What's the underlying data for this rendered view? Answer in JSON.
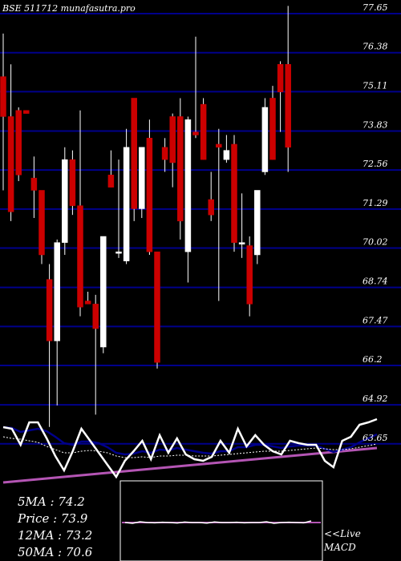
{
  "chart_data": {
    "type": "candlestick",
    "title": "BSE 511712 munafasutra.pro",
    "y_ticks": [
      77.65,
      76.38,
      75.11,
      73.83,
      72.56,
      71.29,
      70.02,
      68.74,
      67.47,
      66.2,
      64.92,
      63.65
    ],
    "y_tick_labels": [
      "77.65",
      "76.38",
      "75.11",
      "73.83",
      "72.56",
      "71.29",
      "70.02",
      "68.74",
      "67.47",
      "66.2",
      "64.92",
      "63.65"
    ],
    "ylim": [
      63.3,
      77.9
    ],
    "grid": true,
    "candles": [
      {
        "o": 75.6,
        "h": 77.0,
        "l": 71.9,
        "c": 74.3
      },
      {
        "o": 74.3,
        "h": 76.0,
        "l": 70.9,
        "c": 71.2
      },
      {
        "o": 74.5,
        "h": 74.6,
        "l": 72.2,
        "c": 72.4
      },
      {
        "o": 74.5,
        "h": 74.5,
        "l": 74.4,
        "c": 74.4
      },
      {
        "o": 72.3,
        "h": 73.0,
        "l": 71.0,
        "c": 71.9
      },
      {
        "o": 71.9,
        "h": 71.9,
        "l": 69.5,
        "c": 69.8
      },
      {
        "o": 69.0,
        "h": 69.5,
        "l": 64.2,
        "c": 67.0
      },
      {
        "o": 67.0,
        "h": 70.3,
        "l": 64.9,
        "c": 70.2
      },
      {
        "o": 70.2,
        "h": 73.3,
        "l": 69.8,
        "c": 72.9
      },
      {
        "o": 72.9,
        "h": 73.2,
        "l": 71.1,
        "c": 71.4
      },
      {
        "o": 71.4,
        "h": 74.5,
        "l": 67.8,
        "c": 68.1
      },
      {
        "o": 68.3,
        "h": 68.6,
        "l": 68.2,
        "c": 68.2
      },
      {
        "o": 68.2,
        "h": 68.5,
        "l": 64.6,
        "c": 67.4
      },
      {
        "o": 66.8,
        "h": 70.3,
        "l": 66.6,
        "c": 70.4
      },
      {
        "o": 72.4,
        "h": 73.2,
        "l": 72.0,
        "c": 72.0
      },
      {
        "o": 69.9,
        "h": 72.9,
        "l": 69.7,
        "c": 69.9
      },
      {
        "o": 69.6,
        "h": 73.9,
        "l": 69.5,
        "c": 73.3
      },
      {
        "o": 74.9,
        "h": 74.9,
        "l": 70.9,
        "c": 71.3
      },
      {
        "o": 71.3,
        "h": 73.3,
        "l": 71.0,
        "c": 73.3
      },
      {
        "o": 73.6,
        "h": 74.2,
        "l": 69.8,
        "c": 69.9
      },
      {
        "o": 69.9,
        "h": 69.9,
        "l": 66.1,
        "c": 66.3
      },
      {
        "o": 73.3,
        "h": 73.6,
        "l": 72.5,
        "c": 72.9
      },
      {
        "o": 74.3,
        "h": 74.4,
        "l": 72.0,
        "c": 72.8
      },
      {
        "o": 74.3,
        "h": 74.9,
        "l": 70.3,
        "c": 70.9
      },
      {
        "o": 69.9,
        "h": 74.3,
        "l": 68.9,
        "c": 74.2
      },
      {
        "o": 73.8,
        "h": 76.9,
        "l": 73.6,
        "c": 73.7
      },
      {
        "o": 74.7,
        "h": 74.9,
        "l": 72.9,
        "c": 72.9
      },
      {
        "o": 71.6,
        "h": 72.5,
        "l": 70.9,
        "c": 71.1
      },
      {
        "o": 73.4,
        "h": 73.9,
        "l": 68.3,
        "c": 73.3
      },
      {
        "o": 72.9,
        "h": 73.7,
        "l": 72.8,
        "c": 73.2
      },
      {
        "o": 73.4,
        "h": 73.7,
        "l": 69.9,
        "c": 70.2
      },
      {
        "o": 70.2,
        "h": 71.8,
        "l": 69.7,
        "c": 70.2
      },
      {
        "o": 70.1,
        "h": 70.4,
        "l": 67.8,
        "c": 68.2
      },
      {
        "o": 69.8,
        "h": 71.8,
        "l": 69.5,
        "c": 71.9
      },
      {
        "o": 72.5,
        "h": 74.9,
        "l": 72.4,
        "c": 74.6
      },
      {
        "o": 74.9,
        "h": 75.3,
        "l": 72.9,
        "c": 72.9
      },
      {
        "o": 76.0,
        "h": 76.1,
        "l": 73.8,
        "c": 75.1
      },
      {
        "o": 76.0,
        "h": 77.9,
        "l": 72.5,
        "c": 73.3
      }
    ],
    "bull_color": "#ffffff",
    "bear_color": "#cc0000",
    "grid_color": "#00008b",
    "macd_panel": {
      "macd_line": [
        0.72,
        0.7,
        0.5,
        0.78,
        0.78,
        0.58,
        0.36,
        0.18,
        0.42,
        0.7,
        0.55,
        0.4,
        0.25,
        0.1,
        0.3,
        0.42,
        0.55,
        0.32,
        0.62,
        0.4,
        0.58,
        0.38,
        0.32,
        0.3,
        0.35,
        0.55,
        0.4,
        0.7,
        0.48,
        0.62,
        0.5,
        0.42,
        0.38,
        0.55,
        0.52,
        0.5,
        0.5,
        0.3,
        0.22,
        0.55,
        0.6,
        0.75,
        0.78,
        0.82
      ],
      "signal_line": [
        0.72,
        0.71,
        0.66,
        0.68,
        0.7,
        0.67,
        0.6,
        0.52,
        0.5,
        0.54,
        0.54,
        0.52,
        0.47,
        0.4,
        0.38,
        0.39,
        0.42,
        0.4,
        0.44,
        0.43,
        0.46,
        0.44,
        0.42,
        0.4,
        0.39,
        0.42,
        0.42,
        0.47,
        0.47,
        0.5,
        0.5,
        0.48,
        0.46,
        0.48,
        0.49,
        0.49,
        0.49,
        0.45,
        0.41,
        0.44,
        0.47,
        0.53,
        0.58,
        0.63
      ],
      "trend_line": [
        0.6,
        0.58,
        0.57,
        0.55,
        0.53,
        0.48,
        0.44,
        0.4,
        0.4,
        0.42,
        0.43,
        0.42,
        0.4,
        0.36,
        0.34,
        0.34,
        0.35,
        0.34,
        0.36,
        0.36,
        0.37,
        0.37,
        0.36,
        0.36,
        0.36,
        0.37,
        0.38,
        0.39,
        0.4,
        0.41,
        0.42,
        0.42,
        0.42,
        0.43,
        0.44,
        0.45,
        0.46,
        0.45,
        0.44,
        0.44,
        0.45,
        0.47,
        0.49,
        0.51
      ],
      "ema_line": [
        0.03,
        0.04,
        0.05,
        0.06,
        0.07,
        0.08,
        0.09,
        0.1,
        0.11,
        0.12,
        0.13,
        0.14,
        0.15,
        0.16,
        0.17,
        0.18,
        0.19,
        0.2,
        0.21,
        0.22,
        0.23,
        0.24,
        0.25,
        0.26,
        0.27,
        0.28,
        0.29,
        0.3,
        0.31,
        0.32,
        0.33,
        0.34,
        0.35,
        0.36,
        0.37,
        0.38,
        0.39,
        0.4,
        0.41,
        0.42,
        0.43,
        0.44,
        0.45,
        0.46
      ],
      "macd_color": "#ffffff",
      "signal_color": "#00008b",
      "ema_color": "#b455b4",
      "inset_histogram": [
        0.5,
        0.45,
        0.55,
        0.5,
        0.48,
        0.52,
        0.5,
        0.47,
        0.53,
        0.5,
        0.5,
        0.46,
        0.54,
        0.5,
        0.5,
        0.52,
        0.48,
        0.5,
        0.5,
        0.55,
        0.45,
        0.5,
        0.52,
        0.5,
        0.48,
        0.6
      ]
    }
  },
  "stats": [
    {
      "label": "5MA",
      "value": "74.2"
    },
    {
      "label": "Price",
      "value": "73.9"
    },
    {
      "label": "12MA",
      "value": "73.2"
    },
    {
      "label": "50MA",
      "value": "70.6"
    }
  ],
  "macd_caption": [
    "<<Live",
    "MACD"
  ]
}
